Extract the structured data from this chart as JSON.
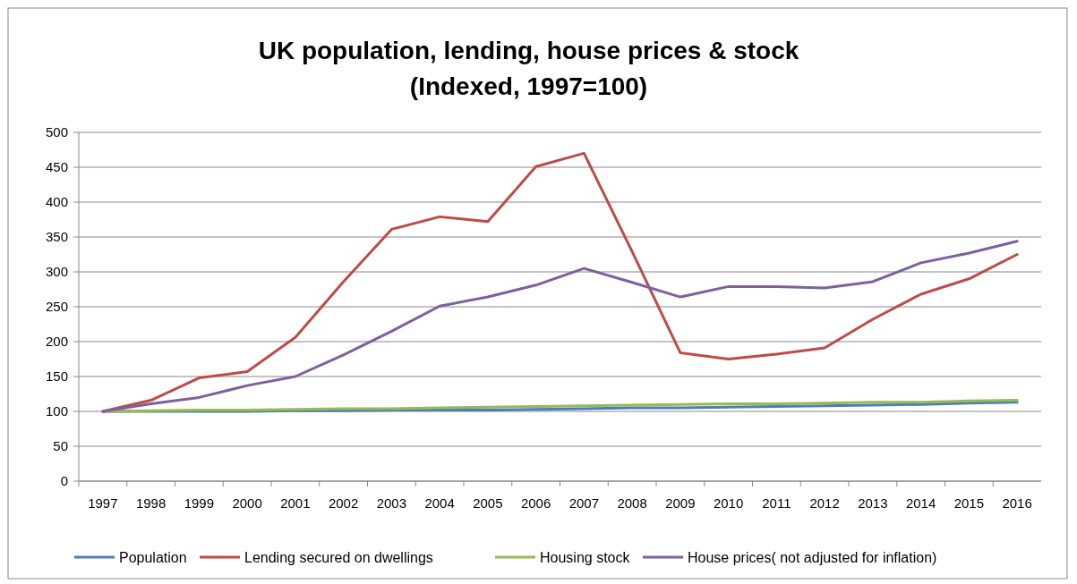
{
  "chart_data": {
    "type": "line",
    "title": "UK population,  lending, house prices & stock\n(Indexed, 1997=100)",
    "categories": [
      "1997",
      "1998",
      "1999",
      "2000",
      "2001",
      "2002",
      "2003",
      "2004",
      "2005",
      "2006",
      "2007",
      "2008",
      "2009",
      "2010",
      "2011",
      "2012",
      "2013",
      "2014",
      "2015",
      "2016"
    ],
    "series": [
      {
        "name": "Population",
        "color": "#4a7ebb",
        "values": [
          100,
          100,
          100,
          100,
          101,
          101,
          102,
          102,
          102,
          103,
          104,
          105,
          105,
          106,
          107,
          108,
          109,
          110,
          112,
          113
        ]
      },
      {
        "name": "Lending secured on dwellings",
        "color": "#be4b48",
        "values": [
          100,
          116,
          148,
          157,
          206,
          286,
          361,
          379,
          372,
          451,
          470,
          329,
          184,
          175,
          182,
          191,
          232,
          268,
          290,
          325
        ]
      },
      {
        "name": "Housing stock",
        "color": "#98b954",
        "values": [
          100,
          101,
          102,
          102,
          103,
          104,
          104,
          105,
          106,
          107,
          108,
          109,
          110,
          111,
          111,
          112,
          113,
          113,
          115,
          116
        ]
      },
      {
        "name": "House prices( not adjusted for inflation)",
        "color": "#7d60a0",
        "values": [
          100,
          111,
          120,
          137,
          150,
          181,
          215,
          251,
          264,
          281,
          305,
          285,
          264,
          279,
          279,
          277,
          286,
          313,
          327,
          344
        ]
      }
    ],
    "ylim": [
      0,
      500
    ],
    "yticks": [
      0,
      50,
      100,
      150,
      200,
      250,
      300,
      350,
      400,
      450,
      500
    ],
    "grid": "y",
    "legend": "bottom",
    "marker": "none",
    "line_style": "solid"
  }
}
